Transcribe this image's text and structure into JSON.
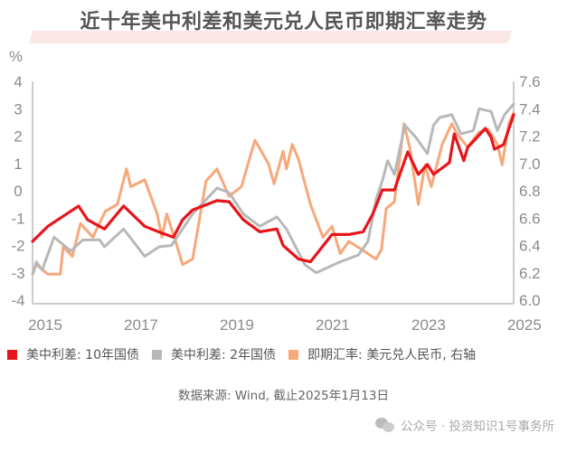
{
  "title": "近十年美中利差和美元兑人民币即期汇率走势",
  "source": "数据来源: Wind, 截止2025年1月13日",
  "watermark": {
    "text": "公众号 · 投资知识1号事务所",
    "icon": "wechat-icon"
  },
  "chart_data": {
    "type": "line",
    "title": "近十年美中利差和美元兑人民币即期汇率走势",
    "left_axis": {
      "unit": "%",
      "range": [
        -4,
        4
      ],
      "ticks": [
        "4",
        "3",
        "2",
        "1",
        "0",
        "-1",
        "-2",
        "-3",
        "-4"
      ]
    },
    "right_axis": {
      "range": [
        6.0,
        7.6
      ],
      "ticks": [
        "7.6",
        "7.4",
        "7.2",
        "7.0",
        "6.8",
        "6.6",
        "6.4",
        "6.2",
        "6.0"
      ]
    },
    "x_axis": {
      "range": [
        2015,
        2025.04
      ],
      "ticks": [
        "2015",
        "2017",
        "2019",
        "2021",
        "2023",
        "2025"
      ]
    },
    "grid": false,
    "legend_placement": "bottom",
    "series": [
      {
        "name": "美中利差: 10年国债",
        "color": "#e8141b",
        "axis": "left",
        "points": [
          [
            2015.0,
            -1.85
          ],
          [
            2015.32,
            -1.3
          ],
          [
            2015.96,
            -0.56
          ],
          [
            2016.15,
            -1.06
          ],
          [
            2016.5,
            -1.4
          ],
          [
            2016.9,
            -0.56
          ],
          [
            2017.34,
            -1.3
          ],
          [
            2017.7,
            -1.55
          ],
          [
            2017.94,
            -1.7
          ],
          [
            2018.13,
            -1.06
          ],
          [
            2018.34,
            -0.7
          ],
          [
            2018.85,
            -0.36
          ],
          [
            2019.1,
            -0.4
          ],
          [
            2019.4,
            -1.06
          ],
          [
            2019.74,
            -1.5
          ],
          [
            2020.1,
            -1.4
          ],
          [
            2020.23,
            -2.0
          ],
          [
            2020.55,
            -2.5
          ],
          [
            2020.8,
            -2.6
          ],
          [
            2021.25,
            -1.6
          ],
          [
            2021.6,
            -1.6
          ],
          [
            2021.9,
            -1.5
          ],
          [
            2022.1,
            -0.85
          ],
          [
            2022.3,
            0.03
          ],
          [
            2022.55,
            0.03
          ],
          [
            2022.83,
            1.42
          ],
          [
            2023.05,
            0.6
          ],
          [
            2023.24,
            0.96
          ],
          [
            2023.37,
            0.6
          ],
          [
            2023.7,
            1.03
          ],
          [
            2023.8,
            2.08
          ],
          [
            2024.0,
            1.1
          ],
          [
            2024.08,
            1.58
          ],
          [
            2024.45,
            2.28
          ],
          [
            2024.57,
            1.95
          ],
          [
            2024.64,
            1.52
          ],
          [
            2024.83,
            1.69
          ],
          [
            2025.04,
            2.78
          ]
        ]
      },
      {
        "name": "美中利差: 2年国债",
        "color": "#b8b8b8",
        "axis": "left",
        "points": [
          [
            2015.0,
            -3.05
          ],
          [
            2015.08,
            -2.6
          ],
          [
            2015.2,
            -2.9
          ],
          [
            2015.45,
            -1.7
          ],
          [
            2015.8,
            -2.2
          ],
          [
            2016.05,
            -1.8
          ],
          [
            2016.4,
            -1.8
          ],
          [
            2016.5,
            -2.05
          ],
          [
            2016.9,
            -1.4
          ],
          [
            2017.34,
            -2.4
          ],
          [
            2017.64,
            -2.05
          ],
          [
            2017.9,
            -2.0
          ],
          [
            2018.34,
            -0.85
          ],
          [
            2018.85,
            0.1
          ],
          [
            2019.1,
            -0.07
          ],
          [
            2019.4,
            -0.85
          ],
          [
            2019.74,
            -1.3
          ],
          [
            2020.1,
            -0.96
          ],
          [
            2020.3,
            -1.4
          ],
          [
            2020.68,
            -2.7
          ],
          [
            2020.92,
            -3.0
          ],
          [
            2021.42,
            -2.6
          ],
          [
            2021.8,
            -2.35
          ],
          [
            2022.0,
            -1.85
          ],
          [
            2022.17,
            -0.3
          ],
          [
            2022.3,
            0.36
          ],
          [
            2022.41,
            1.1
          ],
          [
            2022.55,
            0.6
          ],
          [
            2022.77,
            2.4
          ],
          [
            2023.0,
            1.95
          ],
          [
            2023.24,
            1.36
          ],
          [
            2023.37,
            2.4
          ],
          [
            2023.5,
            2.68
          ],
          [
            2023.75,
            2.78
          ],
          [
            2023.94,
            2.08
          ],
          [
            2024.2,
            2.2
          ],
          [
            2024.32,
            3.0
          ],
          [
            2024.57,
            2.9
          ],
          [
            2024.7,
            2.2
          ],
          [
            2024.85,
            2.78
          ],
          [
            2025.04,
            3.17
          ]
        ]
      },
      {
        "name": "即期汇率: 美元兑人民币, 右轴",
        "color": "#f7a87a",
        "axis": "right",
        "points": [
          [
            2015.0,
            6.19
          ],
          [
            2015.08,
            6.26
          ],
          [
            2015.32,
            6.19
          ],
          [
            2015.58,
            6.19
          ],
          [
            2015.64,
            6.39
          ],
          [
            2015.83,
            6.32
          ],
          [
            2016.0,
            6.56
          ],
          [
            2016.26,
            6.46
          ],
          [
            2016.52,
            6.65
          ],
          [
            2016.77,
            6.7
          ],
          [
            2016.96,
            6.96
          ],
          [
            2017.05,
            6.83
          ],
          [
            2017.34,
            6.88
          ],
          [
            2017.6,
            6.63
          ],
          [
            2017.7,
            6.46
          ],
          [
            2017.8,
            6.63
          ],
          [
            2017.96,
            6.46
          ],
          [
            2018.13,
            6.26
          ],
          [
            2018.34,
            6.3
          ],
          [
            2018.62,
            6.87
          ],
          [
            2018.85,
            6.96
          ],
          [
            2019.1,
            6.76
          ],
          [
            2019.36,
            6.83
          ],
          [
            2019.64,
            7.17
          ],
          [
            2019.92,
            7.0
          ],
          [
            2020.04,
            6.85
          ],
          [
            2020.23,
            7.09
          ],
          [
            2020.3,
            6.96
          ],
          [
            2020.42,
            7.14
          ],
          [
            2020.55,
            7.03
          ],
          [
            2020.8,
            6.7
          ],
          [
            2021.06,
            6.46
          ],
          [
            2021.25,
            6.54
          ],
          [
            2021.42,
            6.34
          ],
          [
            2021.6,
            6.43
          ],
          [
            2021.87,
            6.37
          ],
          [
            2022.17,
            6.3
          ],
          [
            2022.28,
            6.37
          ],
          [
            2022.38,
            6.67
          ],
          [
            2022.55,
            6.72
          ],
          [
            2022.75,
            7.29
          ],
          [
            2022.87,
            7.12
          ],
          [
            2023.05,
            6.7
          ],
          [
            2023.19,
            6.99
          ],
          [
            2023.32,
            6.83
          ],
          [
            2023.55,
            7.14
          ],
          [
            2023.75,
            7.29
          ],
          [
            2023.87,
            7.21
          ],
          [
            2024.08,
            7.12
          ],
          [
            2024.32,
            7.23
          ],
          [
            2024.51,
            7.25
          ],
          [
            2024.7,
            7.14
          ],
          [
            2024.8,
            6.99
          ],
          [
            2024.94,
            7.29
          ],
          [
            2025.04,
            7.37
          ]
        ]
      }
    ]
  }
}
